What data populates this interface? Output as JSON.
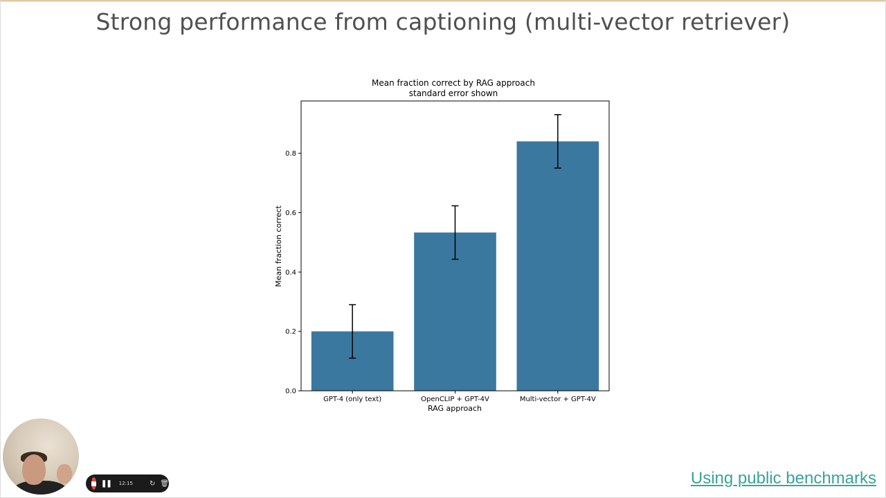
{
  "slide": {
    "title": "Strong performance from captioning (multi-vector retriever)",
    "footer_link": "Using public benchmarks",
    "accent_color": "#f1a640",
    "link_color": "#3aa39a"
  },
  "recorder": {
    "time": "12:15",
    "stop_icon": "stop-icon",
    "pause_icon": "pause-icon",
    "restart_icon": "restart-icon",
    "delete_icon": "trash-icon"
  },
  "chart_data": {
    "type": "bar",
    "title": "Mean fraction correct by RAG approach",
    "subtitle": "standard error shown",
    "xlabel": "RAG approach",
    "ylabel": "Mean fraction correct",
    "categories": [
      "GPT-4 (only text)",
      "OpenCLIP + GPT-4V",
      "Multi-vector + GPT-4V"
    ],
    "values": [
      0.2,
      0.533,
      0.84
    ],
    "errors": [
      0.09,
      0.09,
      0.09
    ],
    "ylim": [
      0,
      0.976
    ],
    "yticks": [
      0.0,
      0.2,
      0.4,
      0.6,
      0.8
    ],
    "ytick_labels": [
      "0.0",
      "0.2",
      "0.4",
      "0.6",
      "0.8"
    ],
    "bar_color": "#3a78a0",
    "grid": false
  }
}
